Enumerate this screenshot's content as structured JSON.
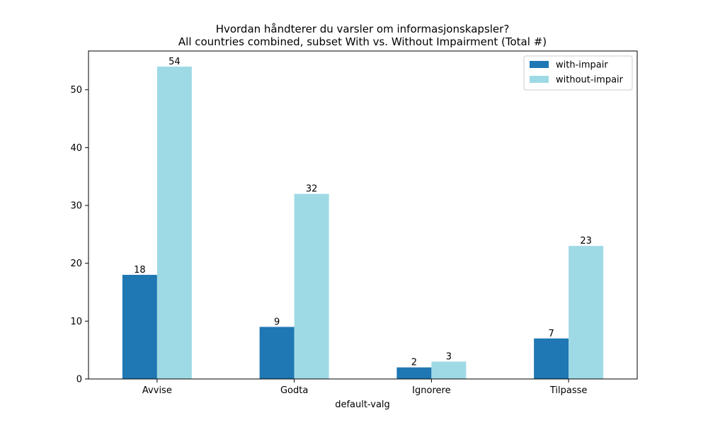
{
  "chart_data": {
    "type": "bar",
    "title": "Hvordan håndterer du varsler om informasjonskapsler?",
    "subtitle": "All countries combined, subset With vs. Without Impairment (Total #)",
    "xlabel": "default-valg",
    "ylabel": "",
    "categories": [
      "Avvise",
      "Godta",
      "Ignorere",
      "Tilpasse"
    ],
    "series": [
      {
        "name": "with-impair",
        "color": "#1f77b4",
        "values": [
          18,
          9,
          2,
          7
        ]
      },
      {
        "name": "without-impair",
        "color": "#9edae5",
        "values": [
          54,
          32,
          3,
          23
        ]
      }
    ],
    "ylim": [
      0,
      56.7
    ],
    "yticks": [
      0,
      10,
      20,
      30,
      40,
      50
    ],
    "grid": false,
    "legend_position": "top-right"
  }
}
